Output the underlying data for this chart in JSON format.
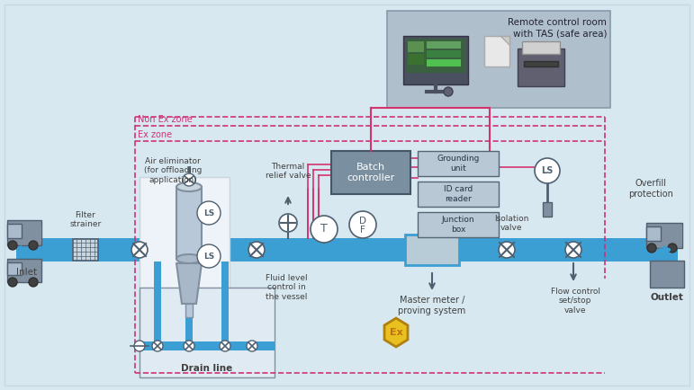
{
  "bg_color": "#d8e8f0",
  "pipe_color": "#3b9fd4",
  "pink_color": "#d4336e",
  "gray_box_color": "#7a8fa0",
  "light_gray_box": "#b8c8d4",
  "white_color": "#ffffff",
  "dark_gray": "#506070",
  "text_color": "#404040",
  "zone_dashed_color": "#cc3377",
  "remote_room_bg": "#b0bfcc",
  "drain_box_bg": "#e0eaf2",
  "labels": {
    "non_ex_zone": "Non Ex zone",
    "ex_zone": "Ex zone",
    "air_eliminator": "Air eliminator\n(for offloading\napplication)",
    "thermal_relief": "Thermal\nrelief valve",
    "batch_controller": "Batch\ncontroller",
    "grounding_unit": "Grounding\nunit",
    "id_card_reader": "ID card\nreader",
    "junction_box": "Junction\nbox",
    "remote_control_line1": "Remote control room",
    "remote_control_line2": "with TAS (safe area)",
    "overfill_protection": "Overfill\nprotection",
    "filter_strainer": "Filter\nstrainer",
    "drain_line": "Drain line",
    "fluid_level": "Fluid level\ncontrol in\nthe vessel",
    "isolation_valve": "Isolation\nvalve",
    "flow_control": "Flow control\nset/stop\nvalve",
    "master_meter": "Master meter /\nproving system",
    "inlet": "Inlet",
    "outlet": "Outlet"
  }
}
